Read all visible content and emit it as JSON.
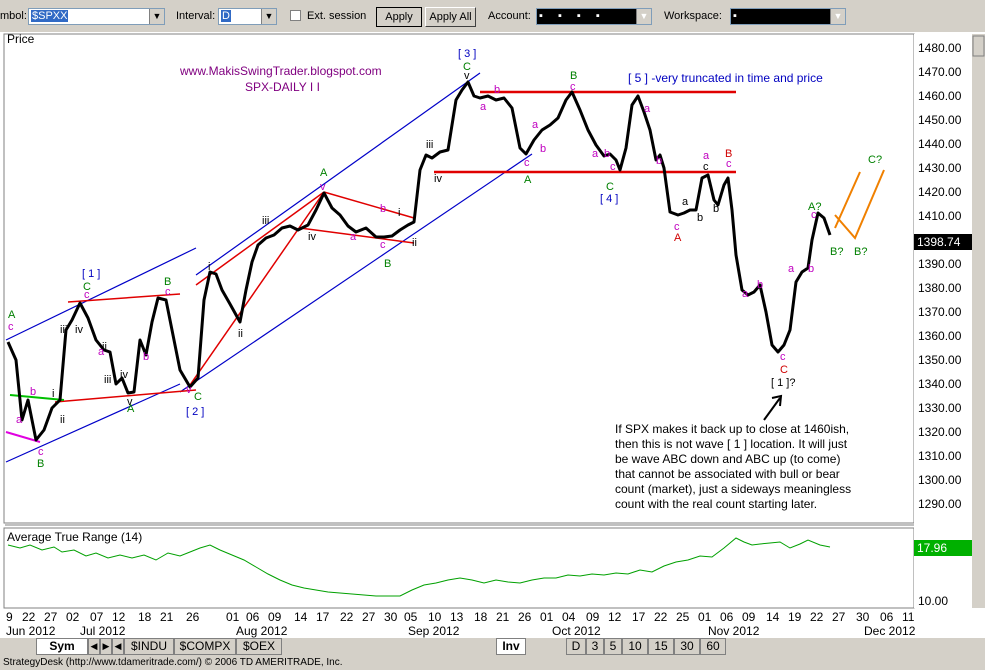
{
  "toolbar": {
    "symbol_label": "mbol:",
    "symbol_value": "$SPXX",
    "interval_label": "Interval:",
    "interval_value": "D",
    "ext_session_label": "Ext. session",
    "apply_label": "Apply",
    "apply_all_label": "Apply All",
    "account_label": "Account:",
    "account_value": "▪  ▪  ▪  ▪",
    "workspace_label": "Workspace:",
    "workspace_value": "▪"
  },
  "panes": {
    "price_title": "Price",
    "atr_title": "Average True Range (14)"
  },
  "annotations": {
    "blog": "www.MakisSwingTrader.blogspot.com",
    "subtitle": "SPX-DAILY I I",
    "wave5_note": "[ 5 ] -very truncated in time and price",
    "note_lines": [
      "If SPX makes it back up to close at 1460ish,",
      "then this is not wave [ 1 ] location. It will just",
      "be wave ABC down and ABC up (to come)",
      "that cannot be associated with bull or bear",
      "count (market), just a sideways meaningless",
      "count with the real count starting later."
    ]
  },
  "price_axis": {
    "ticks": [
      "1480.00",
      "1470.00",
      "1460.00",
      "1450.00",
      "1440.00",
      "1430.00",
      "1420.00",
      "1410.00",
      "1400.00",
      "1390.00",
      "1380.00",
      "1370.00",
      "1360.00",
      "1350.00",
      "1340.00",
      "1330.00",
      "1320.00",
      "1310.00",
      "1300.00",
      "1290.00"
    ],
    "last_price": "1398.74"
  },
  "atr_axis": {
    "last_value": "17.96",
    "tick": "10.00"
  },
  "date_axis": {
    "days": [
      "9",
      "22",
      "27",
      "02",
      "07",
      "12",
      "18",
      "21",
      "26",
      "01",
      "06",
      "09",
      "14",
      "17",
      "22",
      "27",
      "30",
      "05",
      "10",
      "13",
      "18",
      "21",
      "26",
      "01",
      "04",
      "09",
      "12",
      "17",
      "22",
      "25",
      "01",
      "06",
      "09",
      "14",
      "19",
      "22",
      "27",
      "30",
      "06",
      "11"
    ],
    "months": [
      "Jun 2012",
      "Jul 2012",
      "Aug 2012",
      "Sep 2012",
      "Oct 2012",
      "Nov 2012",
      "Dec 2012"
    ]
  },
  "tabs": {
    "sym": "Sym",
    "nav": [
      "◀",
      "▶",
      "◀",
      "▶"
    ],
    "symbols": [
      "$INDU",
      "$COMPX",
      "$OEX"
    ],
    "inv": "Inv",
    "intervals": [
      "D",
      "3",
      "5",
      "10",
      "15",
      "30",
      "60"
    ]
  },
  "status": "StrategyDesk (http://www.tdameritrade.com/) © 2006 TD AMERITRADE, Inc.",
  "colors": {
    "price_line": "#000000",
    "channel": "#0000c8",
    "trendline": "#e00000",
    "projection": "#f08000",
    "atr_line": "#00a000",
    "wave_green": "#008000",
    "wave_magenta": "#c000c0",
    "wave_blue": "#0000c0",
    "wave_red": "#d00000"
  }
}
